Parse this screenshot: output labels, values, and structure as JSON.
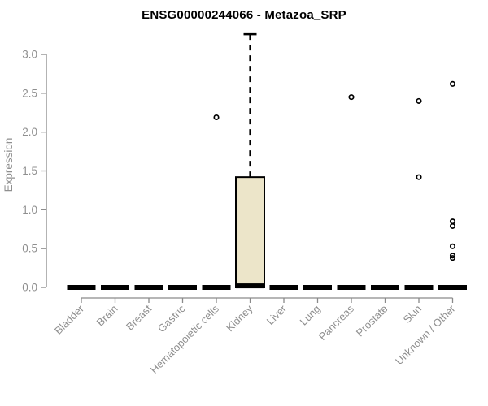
{
  "chart_data": {
    "type": "boxplot",
    "title": "ENSG00000244066 - Metazoa_SRP",
    "ylabel": "Expression",
    "xlabel": "",
    "ylim": [
      0,
      3.3
    ],
    "yticks": [
      0,
      0.5,
      1,
      1.5,
      2,
      2.5,
      3
    ],
    "grid": false,
    "legend": false,
    "categories": [
      "Bladder",
      "Brain",
      "Breast",
      "Gastric",
      "Hematopoietic cells",
      "Kidney",
      "Liver",
      "Lung",
      "Pancreas",
      "Prostate",
      "Skin",
      "Unknown / Other"
    ],
    "boxes": [
      {
        "category": "Bladder",
        "whisker_low": 0,
        "q1": 0,
        "median": 0,
        "q3": 0,
        "whisker_high": 0,
        "outliers": []
      },
      {
        "category": "Brain",
        "whisker_low": 0,
        "q1": 0,
        "median": 0,
        "q3": 0,
        "whisker_high": 0,
        "outliers": []
      },
      {
        "category": "Breast",
        "whisker_low": 0,
        "q1": 0,
        "median": 0,
        "q3": 0,
        "whisker_high": 0,
        "outliers": []
      },
      {
        "category": "Gastric",
        "whisker_low": 0,
        "q1": 0,
        "median": 0,
        "q3": 0,
        "whisker_high": 0,
        "outliers": []
      },
      {
        "category": "Hematopoietic cells",
        "whisker_low": 0,
        "q1": 0,
        "median": 0,
        "q3": 0,
        "whisker_high": 0,
        "outliers": [
          2.19
        ]
      },
      {
        "category": "Kidney",
        "whisker_low": 0,
        "q1": 0,
        "median": 0.02,
        "q3": 1.42,
        "whisker_high": 3.26,
        "outliers": []
      },
      {
        "category": "Liver",
        "whisker_low": 0,
        "q1": 0,
        "median": 0,
        "q3": 0,
        "whisker_high": 0,
        "outliers": []
      },
      {
        "category": "Lung",
        "whisker_low": 0,
        "q1": 0,
        "median": 0,
        "q3": 0,
        "whisker_high": 0,
        "outliers": []
      },
      {
        "category": "Pancreas",
        "whisker_low": 0,
        "q1": 0,
        "median": 0,
        "q3": 0,
        "whisker_high": 0,
        "outliers": [
          2.45
        ]
      },
      {
        "category": "Prostate",
        "whisker_low": 0,
        "q1": 0,
        "median": 0,
        "q3": 0,
        "whisker_high": 0,
        "outliers": []
      },
      {
        "category": "Skin",
        "whisker_low": 0,
        "q1": 0,
        "median": 0,
        "q3": 0,
        "whisker_high": 0,
        "outliers": [
          2.4,
          1.42
        ]
      },
      {
        "category": "Unknown / Other",
        "whisker_low": 0,
        "q1": 0,
        "median": 0,
        "q3": 0,
        "whisker_high": 0,
        "outliers": [
          2.62,
          0.85,
          0.79,
          0.53,
          0.41,
          0.38
        ]
      }
    ],
    "colors": {
      "box_fill": "#ECE5C9",
      "box_stroke": "#000000",
      "median": "#000000",
      "whisker": "#000000",
      "outlier": "#000000",
      "axis": "#8a8a8a",
      "tick_label": "#8f8f8f",
      "title": "#000000",
      "background": "#ffffff"
    }
  }
}
